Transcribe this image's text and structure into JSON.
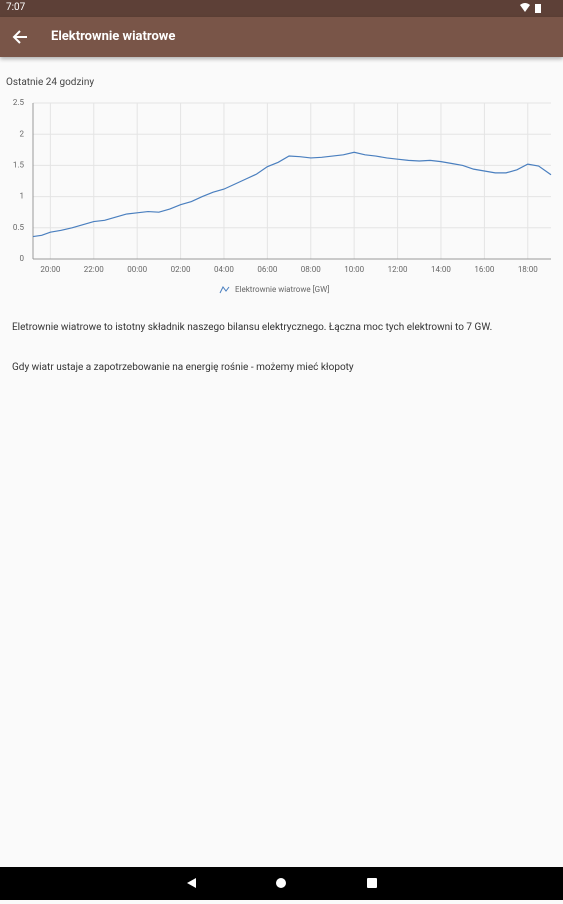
{
  "status_bar": {
    "time": "7:07"
  },
  "header": {
    "title": "Elektrownie wiatrowe"
  },
  "subtitle": "Ostatnie 24 godziny",
  "chart_data": {
    "type": "line",
    "x": [
      19.2,
      19.6,
      20,
      20.5,
      21,
      21.5,
      22,
      22.5,
      23,
      23.5,
      24,
      24.5,
      25,
      25.5,
      26,
      26.5,
      27,
      27.5,
      28,
      28.5,
      29,
      29.5,
      30,
      30.5,
      31,
      31.5,
      32,
      32.5,
      33,
      33.5,
      34,
      34.5,
      35,
      35.5,
      36,
      36.5,
      37,
      37.5,
      38,
      38.5,
      39,
      39.5,
      40,
      40.5,
      41,
      41.5,
      42,
      42.5,
      43.07
    ],
    "series": [
      {
        "name": "Elektrownie wiatrowe [GW]",
        "color": "#4a7fbf",
        "values": [
          0.36,
          0.38,
          0.43,
          0.46,
          0.5,
          0.55,
          0.6,
          0.62,
          0.67,
          0.72,
          0.74,
          0.76,
          0.75,
          0.8,
          0.87,
          0.92,
          1.0,
          1.07,
          1.12,
          1.2,
          1.28,
          1.36,
          1.48,
          1.55,
          1.65,
          1.64,
          1.62,
          1.63,
          1.65,
          1.67,
          1.71,
          1.67,
          1.65,
          1.62,
          1.6,
          1.58,
          1.57,
          1.58,
          1.56,
          1.53,
          1.5,
          1.44,
          1.41,
          1.38,
          1.38,
          1.43,
          1.52,
          1.49,
          1.35
        ]
      }
    ],
    "xlim": [
      19.2,
      43.07
    ],
    "xticks": [
      {
        "value": 20,
        "label": "20:00"
      },
      {
        "value": 22,
        "label": "22:00"
      },
      {
        "value": 24,
        "label": "00:00"
      },
      {
        "value": 26,
        "label": "02:00"
      },
      {
        "value": 28,
        "label": "04:00"
      },
      {
        "value": 30,
        "label": "06:00"
      },
      {
        "value": 32,
        "label": "08:00"
      },
      {
        "value": 34,
        "label": "10:00"
      },
      {
        "value": 36,
        "label": "12:00"
      },
      {
        "value": 38,
        "label": "14:00"
      },
      {
        "value": 40,
        "label": "16:00"
      },
      {
        "value": 42,
        "label": "18:00"
      }
    ],
    "ylim": [
      0,
      2.5
    ],
    "yticks": [
      0,
      0.5,
      1,
      1.5,
      2,
      2.5
    ],
    "grid": true
  },
  "paragraphs": [
    "Eletrownie wiatrowe to istotny składnik naszego bilansu elektrycznego. Łączna moc tych elektrowni to 7 GW.",
    "Gdy wiatr ustaje a zapotrzebowanie na energię rośnie - możemy mieć kłopoty"
  ]
}
